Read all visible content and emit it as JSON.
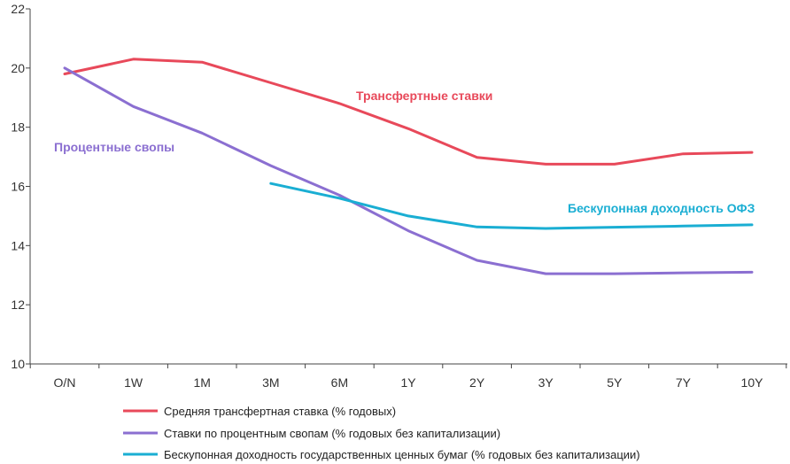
{
  "chart_data": {
    "type": "line",
    "title": "",
    "xlabel": "",
    "ylabel": "",
    "ylim": [
      10,
      22
    ],
    "yticks": [
      10,
      12,
      14,
      16,
      18,
      20,
      22
    ],
    "categories": [
      "O/N",
      "1W",
      "1M",
      "3M",
      "6M",
      "1Y",
      "2Y",
      "3Y",
      "5Y",
      "7Y",
      "10Y"
    ],
    "grid": false,
    "legend_position": "bottom-left",
    "series": [
      {
        "name": "Средняя трансфертная ставка (% годовых)",
        "color": "#e8495a",
        "values": [
          19.8,
          20.3,
          20.2,
          19.5,
          18.8,
          17.95,
          16.98,
          16.75,
          16.75,
          17.1,
          17.15
        ]
      },
      {
        "name": "Ставки по процентным свопам (% годовых без капитализации)",
        "color": "#8b6fd1",
        "values": [
          20.0,
          18.7,
          17.8,
          16.7,
          15.7,
          14.5,
          13.5,
          13.05,
          13.05,
          13.08,
          13.1
        ]
      },
      {
        "name": "Бескупонная доходность государственных ценных бумаг (% годовых без капитализации)",
        "color": "#1aaed3",
        "values": [
          null,
          null,
          null,
          16.1,
          15.6,
          15.0,
          14.63,
          14.58,
          14.62,
          14.66,
          14.7
        ]
      }
    ],
    "annotations": [
      {
        "text": "Трансфертные ставки",
        "color": "#e8495a",
        "series": 0
      },
      {
        "text": "Процентные свопы",
        "color": "#8b6fd1",
        "series": 1
      },
      {
        "text": "Бескупонная доходность ОФЗ",
        "color": "#1aaed3",
        "series": 2
      }
    ]
  }
}
